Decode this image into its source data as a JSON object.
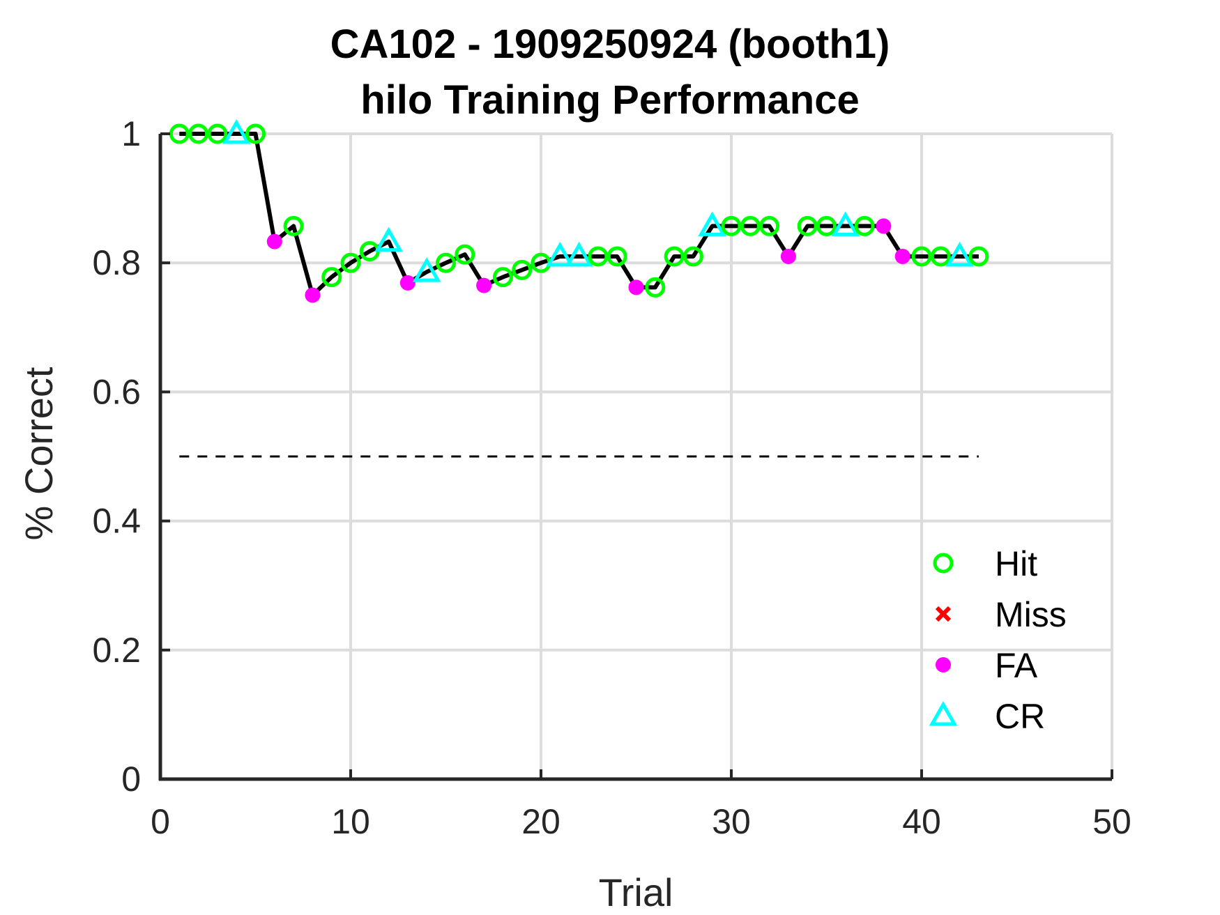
{
  "chart_data": {
    "type": "line",
    "title": "CA102 - 1909250924 (booth1)",
    "subtitle": "hilo Training Performance",
    "xlabel": "Trial",
    "ylabel": "% Correct",
    "xlim": [
      0,
      50
    ],
    "ylim": [
      0,
      1
    ],
    "xticks": [
      "0",
      "10",
      "20",
      "30",
      "40",
      "50"
    ],
    "yticks": [
      "0",
      "0.2",
      "0.4",
      "0.6",
      "0.8",
      "1"
    ],
    "grid": true,
    "chance_level": 0.5,
    "legend_position": "bottom-right",
    "legend": [
      "Hit",
      "Miss",
      "FA",
      "CR"
    ],
    "colors": {
      "Hit": "#00ff00",
      "Miss": "#ff0000",
      "FA": "#ff00ff",
      "CR": "#00ffff",
      "line": "#000000"
    },
    "trials": [
      {
        "x": 1,
        "y": 1.0,
        "outcome": "Hit"
      },
      {
        "x": 2,
        "y": 1.0,
        "outcome": "Hit"
      },
      {
        "x": 3,
        "y": 1.0,
        "outcome": "Hit"
      },
      {
        "x": 4,
        "y": 1.0,
        "outcome": "CR"
      },
      {
        "x": 5,
        "y": 1.0,
        "outcome": "Hit"
      },
      {
        "x": 6,
        "y": 0.833,
        "outcome": "FA"
      },
      {
        "x": 7,
        "y": 0.857,
        "outcome": "Hit"
      },
      {
        "x": 8,
        "y": 0.75,
        "outcome": "FA"
      },
      {
        "x": 9,
        "y": 0.778,
        "outcome": "Hit"
      },
      {
        "x": 10,
        "y": 0.8,
        "outcome": "Hit"
      },
      {
        "x": 11,
        "y": 0.818,
        "outcome": "Hit"
      },
      {
        "x": 12,
        "y": 0.833,
        "outcome": "CR"
      },
      {
        "x": 13,
        "y": 0.769,
        "outcome": "FA"
      },
      {
        "x": 14,
        "y": 0.786,
        "outcome": "CR"
      },
      {
        "x": 15,
        "y": 0.8,
        "outcome": "Hit"
      },
      {
        "x": 16,
        "y": 0.813,
        "outcome": "Hit"
      },
      {
        "x": 17,
        "y": 0.765,
        "outcome": "FA"
      },
      {
        "x": 18,
        "y": 0.778,
        "outcome": "Hit"
      },
      {
        "x": 19,
        "y": 0.789,
        "outcome": "Hit"
      },
      {
        "x": 20,
        "y": 0.8,
        "outcome": "Hit"
      },
      {
        "x": 21,
        "y": 0.81,
        "outcome": "CR"
      },
      {
        "x": 22,
        "y": 0.81,
        "outcome": "CR"
      },
      {
        "x": 23,
        "y": 0.81,
        "outcome": "Hit"
      },
      {
        "x": 24,
        "y": 0.81,
        "outcome": "Hit"
      },
      {
        "x": 25,
        "y": 0.762,
        "outcome": "FA"
      },
      {
        "x": 26,
        "y": 0.762,
        "outcome": "Hit"
      },
      {
        "x": 27,
        "y": 0.81,
        "outcome": "Hit"
      },
      {
        "x": 28,
        "y": 0.81,
        "outcome": "Hit"
      },
      {
        "x": 29,
        "y": 0.857,
        "outcome": "CR"
      },
      {
        "x": 30,
        "y": 0.857,
        "outcome": "Hit"
      },
      {
        "x": 31,
        "y": 0.857,
        "outcome": "Hit"
      },
      {
        "x": 32,
        "y": 0.857,
        "outcome": "Hit"
      },
      {
        "x": 33,
        "y": 0.81,
        "outcome": "FA"
      },
      {
        "x": 34,
        "y": 0.857,
        "outcome": "Hit"
      },
      {
        "x": 35,
        "y": 0.857,
        "outcome": "Hit"
      },
      {
        "x": 36,
        "y": 0.857,
        "outcome": "CR"
      },
      {
        "x": 37,
        "y": 0.857,
        "outcome": "Hit"
      },
      {
        "x": 38,
        "y": 0.857,
        "outcome": "FA"
      },
      {
        "x": 39,
        "y": 0.81,
        "outcome": "FA"
      },
      {
        "x": 40,
        "y": 0.81,
        "outcome": "Hit"
      },
      {
        "x": 41,
        "y": 0.81,
        "outcome": "Hit"
      },
      {
        "x": 42,
        "y": 0.81,
        "outcome": "CR"
      },
      {
        "x": 43,
        "y": 0.81,
        "outcome": "Hit"
      }
    ]
  }
}
